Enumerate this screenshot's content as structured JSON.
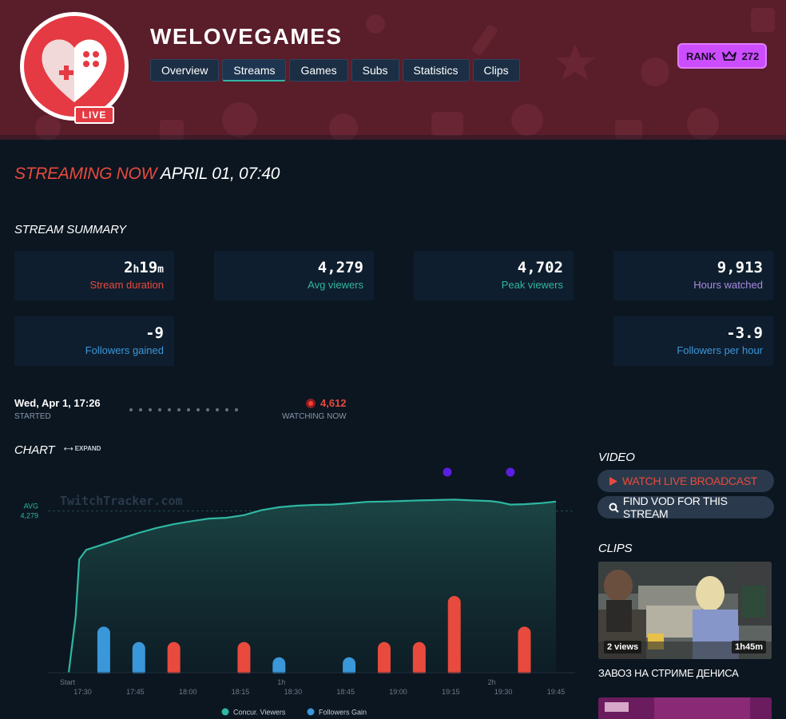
{
  "channel": {
    "name": "WELOVEGAMES",
    "live_label": "LIVE"
  },
  "tabs": [
    "Overview",
    "Streams",
    "Games",
    "Subs",
    "Statistics",
    "Clips"
  ],
  "active_tab": "Streams",
  "rank": {
    "label": "RANK",
    "value": "272"
  },
  "streaming": {
    "prefix": "STREAMING NOW",
    "datetime": "APRIL 01, 07:40"
  },
  "summary": {
    "title": "STREAM SUMMARY",
    "duration": {
      "hours": "2",
      "h": "h",
      "minutes": "19",
      "m": "m",
      "label": "Stream duration"
    },
    "avg_viewers": {
      "value": "4,279",
      "label": "Avg viewers"
    },
    "peak_viewers": {
      "value": "4,702",
      "label": "Peak viewers"
    },
    "hours_watched": {
      "value": "9,913",
      "label": "Hours watched"
    },
    "followers_gained": {
      "value": "-9",
      "label": "Followers gained"
    },
    "followers_per_hour": {
      "value": "-3.9",
      "label": "Followers per hour"
    }
  },
  "timeline": {
    "started_value": "Wed, Apr 1, 17:26",
    "started_label": "STARTED",
    "watching_value": "4,612",
    "watching_label": "WATCHING NOW"
  },
  "chart_section": {
    "title": "CHART",
    "expand_label": "⟷ EXPAND"
  },
  "colors": {
    "viewers": "#2fb7a1",
    "followers_gain": "#3a97d9",
    "followers_loss": "#e84a3d",
    "accent": "#e84a3d",
    "rank": "#cc4dff"
  },
  "chart_data": {
    "type": "line",
    "watermark": "TwitchTracker.com",
    "avg_label": "AVG",
    "avg_value_label": "4,279",
    "avg": 4279,
    "xlim": [
      0,
      139
    ],
    "ylim": [
      0,
      4800
    ],
    "minor_labels": [
      {
        "text": "Start",
        "x": 0
      },
      {
        "text": "1h",
        "x": 60
      },
      {
        "text": "2h",
        "x": 120
      }
    ],
    "ticks": [
      {
        "text": "17:30",
        "x": 4
      },
      {
        "text": "17:45",
        "x": 19
      },
      {
        "text": "18:00",
        "x": 34
      },
      {
        "text": "18:15",
        "x": 49
      },
      {
        "text": "18:30",
        "x": 64
      },
      {
        "text": "18:45",
        "x": 79
      },
      {
        "text": "19:00",
        "x": 94
      },
      {
        "text": "19:15",
        "x": 109
      },
      {
        "text": "19:30",
        "x": 124
      },
      {
        "text": "19:45",
        "x": 139
      }
    ],
    "viewers": {
      "name": "Concur. Viewers",
      "points": [
        [
          0,
          0
        ],
        [
          2,
          1500
        ],
        [
          3,
          3000
        ],
        [
          5,
          3250
        ],
        [
          10,
          3400
        ],
        [
          15,
          3550
        ],
        [
          20,
          3700
        ],
        [
          25,
          3830
        ],
        [
          30,
          3930
        ],
        [
          35,
          4010
        ],
        [
          40,
          4080
        ],
        [
          45,
          4100
        ],
        [
          50,
          4170
        ],
        [
          55,
          4300
        ],
        [
          60,
          4380
        ],
        [
          65,
          4420
        ],
        [
          70,
          4440
        ],
        [
          75,
          4450
        ],
        [
          80,
          4480
        ],
        [
          85,
          4520
        ],
        [
          90,
          4530
        ],
        [
          95,
          4545
        ],
        [
          100,
          4560
        ],
        [
          105,
          4570
        ],
        [
          110,
          4580
        ],
        [
          115,
          4560
        ],
        [
          120,
          4545
        ],
        [
          123,
          4510
        ],
        [
          126,
          4450
        ],
        [
          130,
          4460
        ],
        [
          135,
          4490
        ],
        [
          139,
          4530
        ]
      ]
    },
    "followers": {
      "name": "Followers Gain",
      "bars": [
        {
          "x": 10,
          "value": 3
        },
        {
          "x": 20,
          "value": 2
        },
        {
          "x": 30,
          "value": -2
        },
        {
          "x": 50,
          "value": -2
        },
        {
          "x": 60,
          "value": 1
        },
        {
          "x": 80,
          "value": 1
        },
        {
          "x": 90,
          "value": -2
        },
        {
          "x": 100,
          "value": -2
        },
        {
          "x": 110,
          "value": -5
        },
        {
          "x": 130,
          "value": -3
        }
      ],
      "bar_max": 5
    },
    "markers": [
      108,
      126
    ],
    "legend": "bottom"
  },
  "video": {
    "title": "VIDEO",
    "watch_label": "WATCH LIVE BROADCAST",
    "vod_label": "FIND VOD FOR THIS STREAM"
  },
  "clips": {
    "title": "CLIPS",
    "items": [
      {
        "views": "2 views",
        "duration": "1h45m",
        "title": "ЗАВОЗ НА СТРИМЕ ДЕНИСА"
      }
    ]
  }
}
